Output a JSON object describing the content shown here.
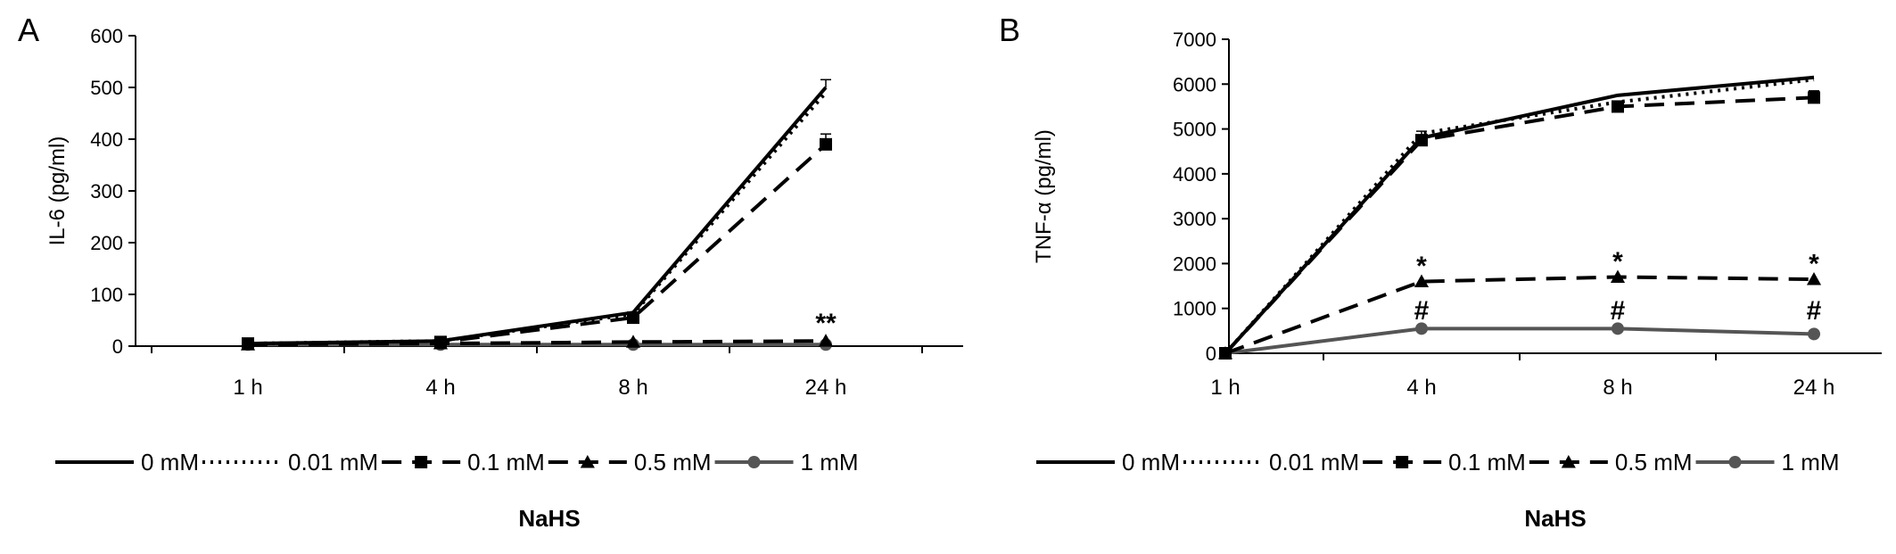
{
  "chart_data": [
    {
      "type": "line",
      "panel_label": "A",
      "ylabel": "IL-6 (pg/ml)",
      "xlabel": "NaHS",
      "categories": [
        "1 h",
        "4 h",
        "8 h",
        "24 h"
      ],
      "ylim": [
        0,
        600
      ],
      "yticks": [
        0,
        100,
        200,
        300,
        400,
        500,
        600
      ],
      "ytick_labels": [
        "0",
        "100",
        "200",
        "300",
        "400",
        "500",
        "600"
      ],
      "legend_position": "bottom",
      "series": [
        {
          "name": "0 mM",
          "values": [
            5,
            10,
            65,
            500
          ],
          "errors": [
            0,
            0,
            0,
            15
          ],
          "style": "solid",
          "marker": "none",
          "color": "#000000"
        },
        {
          "name": "0.01 mM",
          "values": [
            5,
            10,
            62,
            490
          ],
          "errors": [
            0,
            0,
            0,
            0
          ],
          "style": "dotted",
          "marker": "none",
          "color": "#000000"
        },
        {
          "name": "0.1 mM",
          "values": [
            5,
            8,
            55,
            390
          ],
          "errors": [
            0,
            0,
            0,
            20
          ],
          "style": "dashed",
          "marker": "square",
          "color": "#000000"
        },
        {
          "name": "0.5 mM",
          "values": [
            3,
            5,
            8,
            10
          ],
          "errors": [
            0,
            0,
            0,
            0
          ],
          "style": "dashed",
          "marker": "triangle",
          "color": "#000000"
        },
        {
          "name": "1 mM",
          "values": [
            3,
            3,
            3,
            3
          ],
          "errors": [
            0,
            0,
            0,
            0
          ],
          "style": "solid",
          "marker": "circle",
          "color": "#555555"
        }
      ],
      "annotations": [
        {
          "text": "**",
          "category": "24 h",
          "y": 45
        }
      ]
    },
    {
      "type": "line",
      "panel_label": "B",
      "ylabel": "TNF-α (pg/ml)",
      "xlabel": "NaHS",
      "categories": [
        "1 h",
        "4 h",
        "8 h",
        "24 h"
      ],
      "ylim": [
        0,
        7000
      ],
      "yticks": [
        0,
        1000,
        2000,
        3000,
        4000,
        5000,
        6000,
        7000
      ],
      "ytick_labels": [
        "0",
        "1000",
        "2000",
        "3000",
        "4000",
        "5000",
        "6000",
        "7000"
      ],
      "legend_position": "bottom",
      "series": [
        {
          "name": "0 mM",
          "values": [
            0,
            4800,
            5750,
            6150
          ],
          "errors": [
            0,
            150,
            0,
            0
          ],
          "style": "solid",
          "marker": "none",
          "color": "#000000"
        },
        {
          "name": "0.01 mM",
          "values": [
            0,
            4900,
            5600,
            6100
          ],
          "errors": [
            0,
            0,
            0,
            0
          ],
          "style": "dotted",
          "marker": "none",
          "color": "#000000"
        },
        {
          "name": "0.1 mM",
          "values": [
            0,
            4750,
            5500,
            5700
          ],
          "errors": [
            0,
            100,
            80,
            150
          ],
          "style": "dashed",
          "marker": "square",
          "color": "#000000"
        },
        {
          "name": "0.5 mM",
          "values": [
            0,
            1600,
            1700,
            1650
          ],
          "errors": [
            0,
            0,
            0,
            0
          ],
          "style": "dashed",
          "marker": "triangle",
          "color": "#000000"
        },
        {
          "name": "1 mM",
          "values": [
            0,
            550,
            550,
            430
          ],
          "errors": [
            0,
            0,
            0,
            0
          ],
          "style": "solid",
          "marker": "circle",
          "color": "#555555"
        }
      ],
      "annotations": [
        {
          "text": "*",
          "category": "4 h",
          "y": 1950
        },
        {
          "text": "#",
          "category": "4 h",
          "y": 950
        },
        {
          "text": "*",
          "category": "8 h",
          "y": 2050
        },
        {
          "text": "#",
          "category": "8 h",
          "y": 950
        },
        {
          "text": "*",
          "category": "24 h",
          "y": 2000
        },
        {
          "text": "#",
          "category": "24 h",
          "y": 950
        }
      ]
    }
  ]
}
